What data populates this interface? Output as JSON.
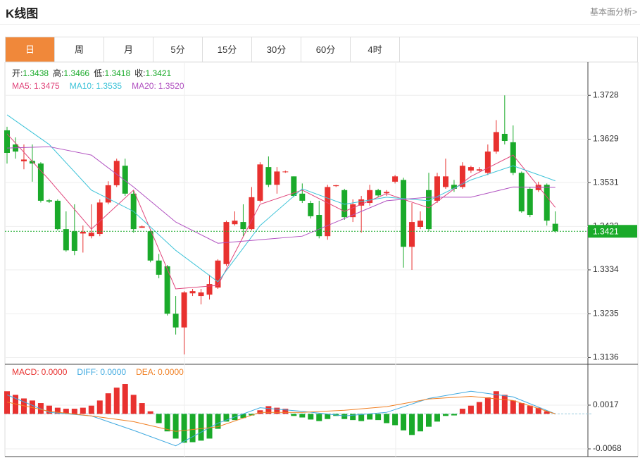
{
  "header": {
    "title": "K线图",
    "link": "基本面分析>"
  },
  "tabs": [
    "日",
    "周",
    "月",
    "5分",
    "15分",
    "30分",
    "60分",
    "4时"
  ],
  "active_tab": 0,
  "chart_data": [
    {
      "type": "candlestick",
      "up_color": "#e8312f",
      "down_color": "#1aaa2a",
      "grid": true,
      "ylim": [
        1.3124,
        1.38
      ],
      "yticks": [
        1.3136,
        1.3235,
        1.3334,
        1.3432,
        1.3531,
        1.3629,
        1.3728
      ],
      "info": [
        {
          "label": "开:",
          "value": 1.3438
        },
        {
          "label": "高:",
          "value": 1.3466
        },
        {
          "label": "低:",
          "value": 1.3418
        },
        {
          "label": "收:",
          "value": 1.3421
        }
      ],
      "ohlc": [
        [
          1.3649,
          1.3657,
          1.3574,
          1.3598
        ],
        [
          1.3617,
          1.3633,
          1.3585,
          1.3601
        ],
        [
          1.3579,
          1.3617,
          1.3561,
          1.3583
        ],
        [
          1.358,
          1.3617,
          1.3533,
          1.3574
        ],
        [
          1.3574,
          1.3577,
          1.3486,
          1.349
        ],
        [
          1.3491,
          1.3494,
          1.3485,
          1.3488
        ],
        [
          1.349,
          1.3493,
          1.3423,
          1.3426
        ],
        [
          1.3426,
          1.3466,
          1.3375,
          1.3378
        ],
        [
          1.3421,
          1.3482,
          1.3367,
          1.3377
        ],
        [
          1.3416,
          1.3434,
          1.3373,
          1.342
        ],
        [
          1.341,
          1.3482,
          1.3405,
          1.3418
        ],
        [
          1.3415,
          1.3493,
          1.341,
          1.3486
        ],
        [
          1.3486,
          1.3534,
          1.3482,
          1.3525
        ],
        [
          1.3525,
          1.3585,
          1.3521,
          1.358
        ],
        [
          1.3569,
          1.3585,
          1.3501,
          1.3506
        ],
        [
          1.3506,
          1.3514,
          1.3418,
          1.3426
        ],
        [
          1.3429,
          1.3434,
          1.3429,
          1.3432
        ],
        [
          1.3421,
          1.3426,
          1.3351,
          1.3355
        ],
        [
          1.3355,
          1.337,
          1.3315,
          1.3323
        ],
        [
          1.3342,
          1.3345,
          1.3231,
          1.3235
        ],
        [
          1.3235,
          1.3275,
          1.3188,
          1.3204
        ],
        [
          1.3204,
          1.3286,
          1.3143,
          1.3283
        ],
        [
          1.3281,
          1.3291,
          1.3275,
          1.3286
        ],
        [
          1.3275,
          1.3291,
          1.3256,
          1.3283
        ],
        [
          1.3278,
          1.3323,
          1.3267,
          1.3302
        ],
        [
          1.3294,
          1.3358,
          1.3291,
          1.3355
        ],
        [
          1.3347,
          1.3445,
          1.3343,
          1.3442
        ],
        [
          1.3437,
          1.3466,
          1.3434,
          1.3445
        ],
        [
          1.3442,
          1.3482,
          1.341,
          1.3426
        ],
        [
          1.3426,
          1.3521,
          1.3423,
          1.3498
        ],
        [
          1.349,
          1.3577,
          1.3486,
          1.3572
        ],
        [
          1.3566,
          1.359,
          1.3521,
          1.3526
        ],
        [
          1.3526,
          1.3566,
          1.3506,
          1.3556
        ],
        [
          1.3555,
          1.3558,
          1.3553,
          1.3556
        ],
        [
          1.3545,
          1.3545,
          1.3498,
          1.3501
        ],
        [
          1.3506,
          1.3529,
          1.3485,
          1.349
        ],
        [
          1.3485,
          1.349,
          1.345,
          1.3455
        ],
        [
          1.3458,
          1.349,
          1.3405,
          1.341
        ],
        [
          1.341,
          1.3526,
          1.3402,
          1.3521
        ],
        [
          1.3523,
          1.3526,
          1.3521,
          1.3525
        ],
        [
          1.3514,
          1.3517,
          1.3447,
          1.3453
        ],
        [
          1.3453,
          1.3493,
          1.3442,
          1.3482
        ],
        [
          1.3479,
          1.3501,
          1.3418,
          1.3493
        ],
        [
          1.3485,
          1.3526,
          1.3479,
          1.3514
        ],
        [
          1.3514,
          1.3517,
          1.3498,
          1.3502
        ],
        [
          1.3507,
          1.3514,
          1.3501,
          1.351
        ],
        [
          1.3533,
          1.3548,
          1.3529,
          1.3545
        ],
        [
          1.3537,
          1.3542,
          1.3339,
          1.3386
        ],
        [
          1.3386,
          1.3485,
          1.3334,
          1.3442
        ],
        [
          1.3431,
          1.3466,
          1.3426,
          1.3445
        ],
        [
          1.3514,
          1.3553,
          1.3421,
          1.3426
        ],
        [
          1.349,
          1.3553,
          1.3485,
          1.3545
        ],
        [
          1.3521,
          1.3585,
          1.3517,
          1.3545
        ],
        [
          1.3526,
          1.3537,
          1.351,
          1.3517
        ],
        [
          1.3521,
          1.3577,
          1.3517,
          1.3569
        ],
        [
          1.3558,
          1.3569,
          1.3553,
          1.3566
        ],
        [
          1.3558,
          1.3566,
          1.3556,
          1.3561
        ],
        [
          1.3553,
          1.3617,
          1.3548,
          1.3601
        ],
        [
          1.3601,
          1.3672,
          1.3596,
          1.3645
        ],
        [
          1.3641,
          1.3728,
          1.3617,
          1.3625
        ],
        [
          1.3622,
          1.366,
          1.3548,
          1.3553
        ],
        [
          1.3553,
          1.3556,
          1.3463,
          1.3466
        ],
        [
          1.3517,
          1.3521,
          1.3453,
          1.3458
        ],
        [
          1.3514,
          1.3533,
          1.351,
          1.3526
        ],
        [
          1.3526,
          1.3529,
          1.3434,
          1.3445
        ],
        [
          1.3438,
          1.3466,
          1.3418,
          1.3421
        ]
      ],
      "series": [
        {
          "name": "MA5:",
          "current": 1.3475,
          "color": "#e0457b",
          "x": [
            0,
            5,
            10,
            15,
            20,
            25,
            30,
            35,
            40,
            45,
            50,
            55,
            60,
            65
          ],
          "values": [
            1.3641,
            1.3537,
            1.3426,
            1.3514,
            1.3291,
            1.3299,
            1.3482,
            1.3514,
            1.3466,
            1.3506,
            1.3474,
            1.3545,
            1.3593,
            1.3475
          ]
        },
        {
          "name": "MA10:",
          "current": 1.3535,
          "color": "#3cc3d8",
          "x": [
            0,
            5,
            10,
            15,
            20,
            25,
            30,
            35,
            40,
            45,
            50,
            55,
            60,
            65
          ],
          "values": [
            1.3684,
            1.3617,
            1.3514,
            1.3466,
            1.3378,
            1.3307,
            1.3434,
            1.3517,
            1.3482,
            1.3498,
            1.349,
            1.3537,
            1.3569,
            1.3535
          ]
        },
        {
          "name": "MA20:",
          "current": {
            "value": 1.352,
            "label": "1.3520"
          },
          "color": "#b050c0",
          "x": [
            0,
            5,
            10,
            15,
            20,
            25,
            30,
            35,
            40,
            45,
            50,
            55,
            60,
            65
          ],
          "values": [
            1.3609,
            1.3612,
            1.3593,
            1.3521,
            1.3442,
            1.3394,
            1.3402,
            1.341,
            1.345,
            1.349,
            1.3498,
            1.3498,
            1.3521,
            1.352
          ]
        }
      ]
    },
    {
      "type": "macd",
      "up_color": "#e8312f",
      "down_color": "#1aaa2a",
      "grid": true,
      "ylim": [
        -0.0083,
        0.0095
      ],
      "yticks": [
        -0.0068,
        0.0017
      ],
      "series": [
        {
          "name": "MACD:",
          "current": {
            "value": 0,
            "label": "0.0000"
          },
          "color": "#e8312f",
          "values": [
            0.0044,
            0.0037,
            0.003,
            0.0026,
            0.0021,
            0.0016,
            0.0012,
            0.001,
            0.001,
            0.0012,
            0.0016,
            0.0026,
            0.004,
            0.0051,
            0.0058,
            0.0037,
            0.0021,
            0.0005,
            -0.0018,
            -0.0034,
            -0.0048,
            -0.0056,
            -0.0055,
            -0.0052,
            -0.0048,
            -0.0029,
            -0.0015,
            -0.0012,
            -0.0008,
            -0.0003,
            0.0007,
            0.0015,
            0.0012,
            0.001,
            -0.0004,
            -0.0007,
            -0.0011,
            -0.0014,
            -0.001,
            -0.0004,
            -0.001,
            -0.0012,
            -0.0014,
            -0.0011,
            -0.0012,
            -0.0018,
            -0.0022,
            -0.0032,
            -0.0041,
            -0.0034,
            -0.0025,
            -0.0015,
            -0.0004,
            -0.0003,
            0.001,
            0.0016,
            0.0023,
            0.0032,
            0.0044,
            0.0037,
            0.0026,
            0.0021,
            0.0016,
            0.0012,
            0.0005,
            0
          ]
        },
        {
          "name": "DIFF:",
          "current": {
            "value": 0,
            "label": "0.0000"
          },
          "color": "#3fa9e0",
          "x": [
            0,
            5,
            10,
            15,
            20,
            25,
            30,
            35,
            40,
            45,
            50,
            55,
            60,
            65
          ],
          "values": [
            0.0037,
            0.0003,
            -0.0004,
            -0.0032,
            -0.0062,
            -0.0018,
            0.0012,
            0.0005,
            -0.0004,
            0.0003,
            0.003,
            0.0044,
            0.0033,
            0
          ]
        },
        {
          "name": "DEA:",
          "current": {
            "value": 0,
            "label": "0.0000"
          },
          "color": "#f07f22",
          "x": [
            0,
            5,
            10,
            15,
            20,
            25,
            30,
            35,
            40,
            45,
            50,
            55,
            60,
            65
          ],
          "values": [
            0.0023,
            0.0005,
            -0.0004,
            -0.0015,
            -0.0034,
            -0.0025,
            0.0003,
            0.0003,
            0.0007,
            0.0014,
            0.0029,
            0.0034,
            0.0026,
            0
          ]
        }
      ]
    }
  ]
}
